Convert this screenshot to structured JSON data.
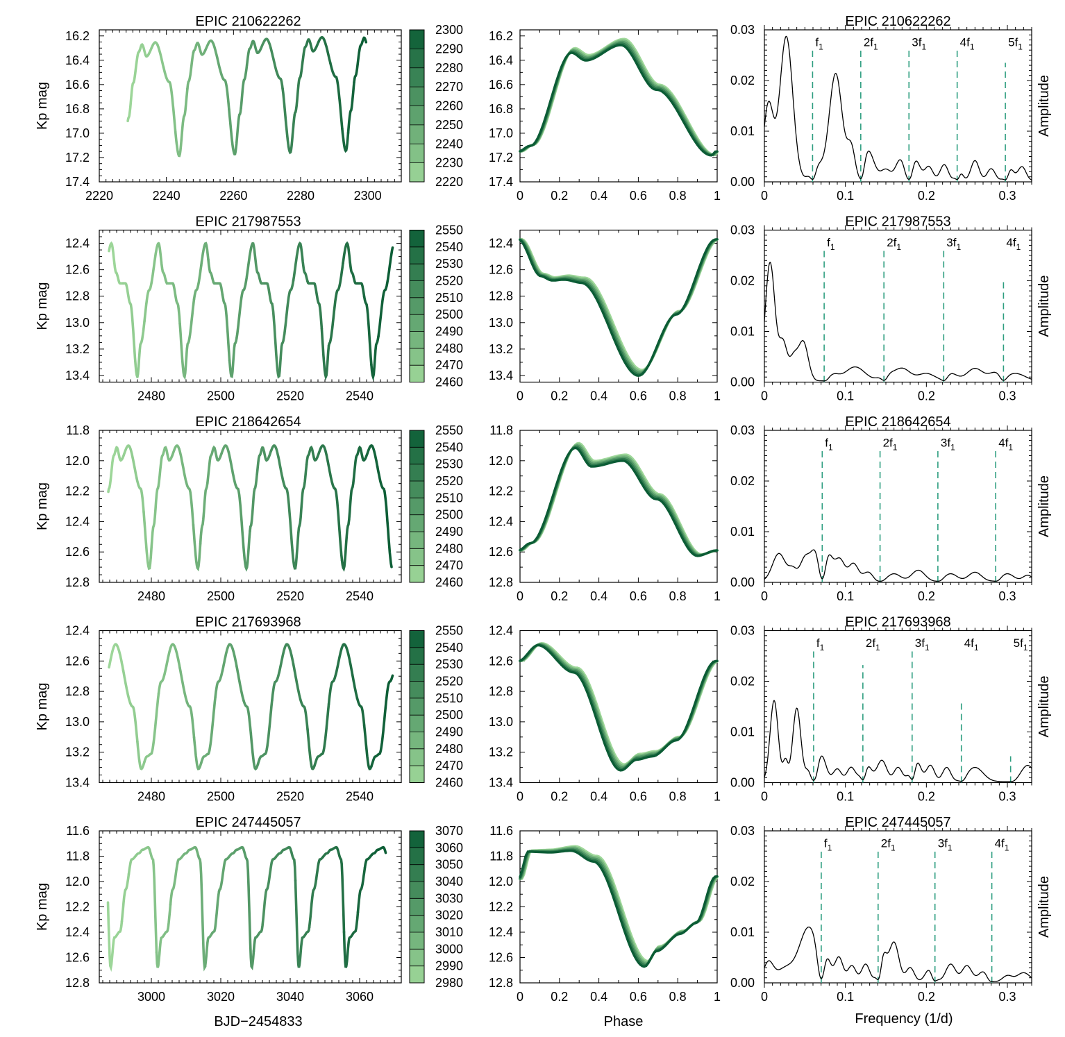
{
  "figure": {
    "x_label_time": "BJD−2454833",
    "x_label_phase": "Phase",
    "x_label_freq": "Frequency (1/d)",
    "y_label_mag": "Kp mag",
    "y_label_amp": "Amplitude"
  },
  "colors": {
    "light_green": "#9fd89a",
    "dark_green": "#0b5c35",
    "harmonic_line": "#2e9e80",
    "spectrum": "#000000"
  },
  "chart_data": [
    {
      "row": 1,
      "type": "line",
      "title": "EPIC 210622262",
      "light_curve": {
        "xlim": [
          2220,
          2310
        ],
        "xticks": [
          2220,
          2240,
          2260,
          2280,
          2300
        ],
        "ylim": [
          16.15,
          17.4
        ],
        "yticks": [
          16.2,
          16.4,
          16.6,
          16.8,
          17.0,
          17.2,
          17.4
        ],
        "t_start": 2228.5,
        "t_end": 2299.5,
        "period": 16.55,
        "max_time": 2248.3,
        "mag_max": 16.26,
        "mag_min": 17.2,
        "shape": "bump-first",
        "trend": -0.02
      },
      "colorbar": {
        "ticks": [
          2220,
          2230,
          2240,
          2250,
          2260,
          2270,
          2280,
          2290,
          2300
        ]
      },
      "phase_curve": {
        "xlim": [
          0,
          1
        ],
        "xticks": [
          "0",
          "0.2",
          "0.4",
          "0.6",
          "0.8",
          "1"
        ],
        "ylim": [
          16.15,
          17.4
        ],
        "yticks": [
          16.2,
          16.4,
          16.6,
          16.8,
          17.0,
          17.2,
          17.4
        ],
        "min_mag": 17.18,
        "bump_peak": 16.32,
        "bump_pos": 0.27,
        "dip_pos": 0.34,
        "dip_mag": 16.38,
        "max_pos": 0.52,
        "max_mag": 16.25,
        "min_pos": 0.98
      },
      "spectrum": {
        "xlim": [
          0,
          0.33
        ],
        "xticks": [
          "0",
          "0.1",
          "0.2",
          "0.3"
        ],
        "ylim": [
          0,
          0.03
        ],
        "yticks": [
          "0.00",
          "0.01",
          "0.02",
          "0.03"
        ],
        "peaks": [
          [
            0.005,
            0.015,
            0.006
          ],
          [
            0.027,
            0.0285,
            0.008
          ],
          [
            0.064,
            0.0035,
            0.007
          ],
          [
            0.088,
            0.0212,
            0.008
          ],
          [
            0.107,
            0.0062,
            0.005
          ],
          [
            0.127,
            0.0063,
            0.008
          ],
          [
            0.15,
            0.0022,
            0.006
          ],
          [
            0.168,
            0.0042,
            0.006
          ],
          [
            0.186,
            0.0043,
            0.006
          ],
          [
            0.203,
            0.0028,
            0.005
          ],
          [
            0.222,
            0.0032,
            0.005
          ],
          [
            0.24,
            0.003,
            0.004
          ],
          [
            0.26,
            0.004,
            0.005
          ],
          [
            0.28,
            0.0024,
            0.005
          ],
          [
            0.302,
            0.003,
            0.005
          ],
          [
            0.318,
            0.0028,
            0.005
          ]
        ],
        "harmonics": [
          {
            "label": "f",
            "sub": "1",
            "freq": 0.0595,
            "top": 0.0262
          },
          {
            "label": "2f",
            "sub": "1",
            "freq": 0.119,
            "top": 0.0262
          },
          {
            "label": "3f",
            "sub": "1",
            "freq": 0.1785,
            "top": 0.0262
          },
          {
            "label": "4f",
            "sub": "1",
            "freq": 0.238,
            "top": 0.0262
          },
          {
            "label": "5f",
            "sub": "1",
            "freq": 0.2975,
            "top": 0.0235
          }
        ]
      }
    },
    {
      "row": 2,
      "type": "line",
      "title": "EPIC 217987553",
      "light_curve": {
        "xlim": [
          2465,
          2552
        ],
        "xticks": [
          2480,
          2500,
          2520,
          2540
        ],
        "ylim": [
          12.3,
          13.45
        ],
        "yticks": [
          12.4,
          12.6,
          12.8,
          13.0,
          13.2,
          13.4
        ],
        "t_start": 2467.8,
        "t_end": 2549.5,
        "period": 13.585,
        "max_time": 2468.5,
        "mag_max": 12.4,
        "mag_min": 13.41,
        "shape": "spike-first",
        "trend": 0.0
      },
      "colorbar": {
        "ticks": [
          2460,
          2470,
          2480,
          2490,
          2500,
          2510,
          2520,
          2530,
          2540,
          2550
        ]
      },
      "phase_curve": {
        "xlim": [
          0,
          1
        ],
        "xticks": [
          "0",
          "0.2",
          "0.4",
          "0.6",
          "0.8",
          "1"
        ],
        "ylim": [
          12.3,
          13.45
        ],
        "yticks": [
          12.4,
          12.6,
          12.8,
          13.0,
          13.2,
          13.4
        ],
        "max_mag": 12.37,
        "shoulder_start": 0.15,
        "shoulder_end": 0.32,
        "shoulder_mag": 12.66,
        "min_pos": 0.61,
        "min_mag": 13.38
      },
      "spectrum": {
        "xlim": [
          0,
          0.33
        ],
        "xticks": [
          "0",
          "0.1",
          "0.2",
          "0.3"
        ],
        "ylim": [
          0,
          0.03
        ],
        "yticks": [
          "0.00",
          "0.01",
          "0.02",
          "0.03"
        ],
        "peaks": [
          [
            0.007,
            0.0234,
            0.006
          ],
          [
            0.023,
            0.0075,
            0.005
          ],
          [
            0.036,
            0.0044,
            0.005
          ],
          [
            0.048,
            0.0077,
            0.006
          ],
          [
            0.085,
            0.0012,
            0.007
          ],
          [
            0.112,
            0.0028,
            0.012
          ],
          [
            0.15,
            0.0012,
            0.008
          ],
          [
            0.17,
            0.0025,
            0.01
          ],
          [
            0.2,
            0.0015,
            0.01
          ],
          [
            0.23,
            0.0015,
            0.008
          ],
          [
            0.26,
            0.0025,
            0.01
          ],
          [
            0.285,
            0.0015,
            0.008
          ],
          [
            0.31,
            0.0015,
            0.012
          ]
        ],
        "harmonics": [
          {
            "label": "f",
            "sub": "1",
            "freq": 0.0738,
            "top": 0.0262
          },
          {
            "label": "2f",
            "sub": "1",
            "freq": 0.1476,
            "top": 0.0262
          },
          {
            "label": "3f",
            "sub": "1",
            "freq": 0.2214,
            "top": 0.0262
          },
          {
            "label": "4f",
            "sub": "1",
            "freq": 0.2952,
            "top": 0.0198
          }
        ]
      }
    },
    {
      "row": 3,
      "type": "line",
      "title": "EPIC 218642654",
      "light_curve": {
        "xlim": [
          2465,
          2552
        ],
        "xticks": [
          2480,
          2500,
          2520,
          2540
        ],
        "ylim": [
          11.8,
          12.8
        ],
        "yticks": [
          11.8,
          12.0,
          12.2,
          12.4,
          12.6,
          12.8
        ],
        "t_start": 2467.6,
        "t_end": 2549.2,
        "period": 14.0,
        "max_time": 2469.2,
        "mag_max": 11.9,
        "mag_min": 12.71,
        "shape": "bump-first",
        "trend": 0.0
      },
      "colorbar": {
        "ticks": [
          2460,
          2470,
          2480,
          2490,
          2500,
          2510,
          2520,
          2530,
          2540,
          2550
        ]
      },
      "phase_curve": {
        "xlim": [
          0,
          1
        ],
        "xticks": [
          "0",
          "0.2",
          "0.4",
          "0.6",
          "0.8",
          "1"
        ],
        "ylim": [
          11.8,
          12.8
        ],
        "yticks": [
          11.8,
          12.0,
          12.2,
          12.4,
          12.6,
          12.8
        ],
        "min_mag": 12.62,
        "bump_peak": 11.9,
        "bump_pos": 0.29,
        "dip_pos": 0.37,
        "dip_mag": 12.02,
        "max_pos": 0.53,
        "max_mag": 11.98,
        "min_pos": 0.91
      },
      "spectrum": {
        "xlim": [
          0,
          0.33
        ],
        "xticks": [
          "0",
          "0.1",
          "0.2",
          "0.3"
        ],
        "ylim": [
          0,
          0.03
        ],
        "yticks": [
          "0.00",
          "0.01",
          "0.02",
          "0.03"
        ],
        "peaks": [
          [
            0.018,
            0.0055,
            0.008
          ],
          [
            0.035,
            0.0022,
            0.005
          ],
          [
            0.05,
            0.0045,
            0.006
          ],
          [
            0.063,
            0.0058,
            0.006
          ],
          [
            0.078,
            0.0055,
            0.006
          ],
          [
            0.093,
            0.0043,
            0.006
          ],
          [
            0.11,
            0.0035,
            0.006
          ],
          [
            0.128,
            0.0018,
            0.006
          ],
          [
            0.16,
            0.0015,
            0.008
          ],
          [
            0.19,
            0.0022,
            0.008
          ],
          [
            0.23,
            0.0015,
            0.008
          ],
          [
            0.26,
            0.0018,
            0.008
          ],
          [
            0.3,
            0.0015,
            0.008
          ],
          [
            0.325,
            0.0012,
            0.006
          ]
        ],
        "harmonics": [
          {
            "label": "f",
            "sub": "1",
            "freq": 0.0714,
            "top": 0.0262
          },
          {
            "label": "2f",
            "sub": "1",
            "freq": 0.1428,
            "top": 0.0262
          },
          {
            "label": "3f",
            "sub": "1",
            "freq": 0.2142,
            "top": 0.0262
          },
          {
            "label": "4f",
            "sub": "1",
            "freq": 0.2856,
            "top": 0.0262
          }
        ]
      }
    },
    {
      "row": 4,
      "type": "line",
      "title": "EPIC 217693968",
      "light_curve": {
        "xlim": [
          2465,
          2552
        ],
        "xticks": [
          2480,
          2500,
          2520,
          2540
        ],
        "ylim": [
          12.4,
          13.4
        ],
        "yticks": [
          12.4,
          12.6,
          12.8,
          13.0,
          13.2,
          13.4
        ],
        "t_start": 2467.8,
        "t_end": 2549.5,
        "period": 16.45,
        "max_time": 2469.7,
        "mag_max": 12.49,
        "mag_min": 13.31,
        "shape": "smooth",
        "trend": 0.0
      },
      "colorbar": {
        "ticks": [
          2460,
          2470,
          2480,
          2490,
          2500,
          2510,
          2520,
          2530,
          2540,
          2550
        ]
      },
      "phase_curve": {
        "xlim": [
          0,
          1
        ],
        "xticks": [
          "0",
          "0.2",
          "0.4",
          "0.6",
          "0.8",
          "1"
        ],
        "ylim": [
          12.4,
          13.4
        ],
        "yticks": [
          12.4,
          12.6,
          12.8,
          13.0,
          13.2,
          13.4
        ],
        "max_pos": 0.1,
        "max_mag": 12.49,
        "min_pos": 0.52,
        "min_mag": 13.3,
        "shoulder_pos": 0.68,
        "shoulder_mag": 13.21,
        "end_mag": 12.6
      },
      "spectrum": {
        "xlim": [
          0,
          0.33
        ],
        "xticks": [
          "0",
          "0.1",
          "0.2",
          "0.3"
        ],
        "ylim": [
          0,
          0.03
        ],
        "yticks": [
          "0.00",
          "0.01",
          "0.02",
          "0.03"
        ],
        "peaks": [
          [
            0.012,
            0.016,
            0.005
          ],
          [
            0.026,
            0.004,
            0.003
          ],
          [
            0.04,
            0.0145,
            0.005
          ],
          [
            0.055,
            0.0025,
            0.004
          ],
          [
            0.07,
            0.0053,
            0.006
          ],
          [
            0.09,
            0.0025,
            0.005
          ],
          [
            0.107,
            0.0028,
            0.005
          ],
          [
            0.125,
            0.0042,
            0.006
          ],
          [
            0.145,
            0.0042,
            0.006
          ],
          [
            0.165,
            0.0028,
            0.005
          ],
          [
            0.186,
            0.0053,
            0.006
          ],
          [
            0.205,
            0.0032,
            0.005
          ],
          [
            0.225,
            0.0028,
            0.005
          ],
          [
            0.26,
            0.0028,
            0.01
          ],
          [
            0.325,
            0.0032,
            0.008
          ]
        ],
        "harmonics": [
          {
            "label": "f",
            "sub": "1",
            "freq": 0.0608,
            "top": 0.0262
          },
          {
            "label": "2f",
            "sub": "1",
            "freq": 0.1216,
            "top": 0.0232
          },
          {
            "label": "3f",
            "sub": "1",
            "freq": 0.1824,
            "top": 0.0262
          },
          {
            "label": "4f",
            "sub": "1",
            "freq": 0.2432,
            "top": 0.0162
          },
          {
            "label": "5f",
            "sub": "1",
            "freq": 0.304,
            "top": 0.0052
          }
        ]
      }
    },
    {
      "row": 5,
      "type": "line",
      "title": "EPIC 247445057",
      "light_curve": {
        "xlim": [
          2985,
          3072
        ],
        "xticks": [
          3000,
          3020,
          3040,
          3060
        ],
        "ylim": [
          11.6,
          12.8
        ],
        "yticks": [
          11.6,
          11.8,
          12.0,
          12.2,
          12.4,
          12.6,
          12.8
        ],
        "t_start": 2987.5,
        "t_end": 3067.5,
        "period": 13.55,
        "max_time": 2996.4,
        "mag_max": 11.73,
        "mag_min": 12.68,
        "shape": "plateau",
        "trend": 0.0
      },
      "colorbar": {
        "ticks": [
          2980,
          2990,
          3000,
          3010,
          3020,
          3030,
          3040,
          3050,
          3060,
          3070
        ]
      },
      "phase_curve": {
        "xlim": [
          0,
          1
        ],
        "xticks": [
          "0",
          "0.2",
          "0.4",
          "0.6",
          "0.8",
          "1"
        ],
        "ylim": [
          11.6,
          12.8
        ],
        "yticks": [
          11.6,
          11.8,
          12.0,
          12.2,
          12.4,
          12.6,
          12.8
        ],
        "start_mag": 11.98,
        "plateau_mag": 11.74,
        "min_pos": 0.64,
        "min_mag": 12.65,
        "shoulder_pos": 0.82,
        "shoulder_mag": 12.4,
        "end_mag": 11.96
      },
      "spectrum": {
        "xlim": [
          0,
          0.33
        ],
        "xticks": [
          "0",
          "0.1",
          "0.2",
          "0.3"
        ],
        "ylim": [
          0,
          0.03
        ],
        "yticks": [
          "0.00",
          "0.01",
          "0.02",
          "0.03"
        ],
        "peaks": [
          [
            0.005,
            0.0038,
            0.006
          ],
          [
            0.025,
            0.0025,
            0.01
          ],
          [
            0.055,
            0.0108,
            0.012
          ],
          [
            0.077,
            0.0035,
            0.005
          ],
          [
            0.092,
            0.0048,
            0.005
          ],
          [
            0.108,
            0.0032,
            0.005
          ],
          [
            0.125,
            0.0035,
            0.005
          ],
          [
            0.145,
            0.0068,
            0.005
          ],
          [
            0.16,
            0.0078,
            0.006
          ],
          [
            0.18,
            0.0028,
            0.005
          ],
          [
            0.205,
            0.0028,
            0.006
          ],
          [
            0.23,
            0.0035,
            0.006
          ],
          [
            0.25,
            0.0032,
            0.006
          ],
          [
            0.27,
            0.002,
            0.006
          ],
          [
            0.3,
            0.0012,
            0.006
          ],
          [
            0.32,
            0.0018,
            0.008
          ]
        ],
        "harmonics": [
          {
            "label": "f",
            "sub": "1",
            "freq": 0.0702,
            "top": 0.0262
          },
          {
            "label": "2f",
            "sub": "1",
            "freq": 0.1404,
            "top": 0.0262
          },
          {
            "label": "3f",
            "sub": "1",
            "freq": 0.2106,
            "top": 0.0262
          },
          {
            "label": "4f",
            "sub": "1",
            "freq": 0.2808,
            "top": 0.0262
          }
        ]
      }
    }
  ]
}
